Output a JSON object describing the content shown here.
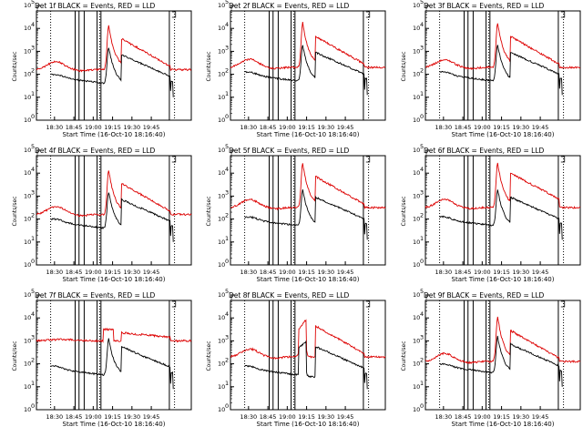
{
  "chart_data": {
    "type": "line",
    "title_suffix": " BLACK = Events, RED = LLD",
    "xlabel": "Start Time (16-Oct-10 18:16:40)",
    "ylabel": "Counts/sec",
    "xticks": [
      "18:30",
      "18:45",
      "19:00",
      "19:15",
      "19:30",
      "19:45"
    ],
    "ytick_exponents": [
      0,
      1,
      2,
      3,
      4,
      5
    ],
    "xlim_minutes": [
      0,
      120
    ],
    "ylim_log10": [
      0,
      5
    ],
    "grid": false,
    "colors": {
      "events": "#000000",
      "lld": "#dd0000"
    },
    "series": [
      {
        "name": "BLACK",
        "color": "#000000"
      },
      {
        "name": "RED",
        "color": "#dd0000"
      }
    ],
    "panels": [
      {
        "title": "Det 1f",
        "profile": "a",
        "lld_base": 2.2,
        "ev_base": 1.9
      },
      {
        "title": "Det 2f",
        "profile": "a",
        "lld_base": 2.3,
        "ev_base": 2.0
      },
      {
        "title": "Det 3f",
        "profile": "b",
        "lld_base": 2.3,
        "ev_base": 2.0
      },
      {
        "title": "Det 4f",
        "profile": "a",
        "lld_base": 2.2,
        "ev_base": 1.9
      },
      {
        "title": "Det 5f",
        "profile": "a",
        "lld_base": 2.5,
        "ev_base": 2.0
      },
      {
        "title": "Det 6f",
        "profile": "c",
        "lld_base": 2.5,
        "ev_base": 2.0
      },
      {
        "title": "Det 7f",
        "profile": "d",
        "lld_base": 3.0,
        "ev_base": 1.8
      },
      {
        "title": "Det 8f",
        "profile": "e",
        "lld_base": 2.3,
        "ev_base": 1.8
      },
      {
        "title": "Det 9f",
        "profile": "b",
        "lld_base": 2.1,
        "ev_base": 1.9
      }
    ]
  }
}
